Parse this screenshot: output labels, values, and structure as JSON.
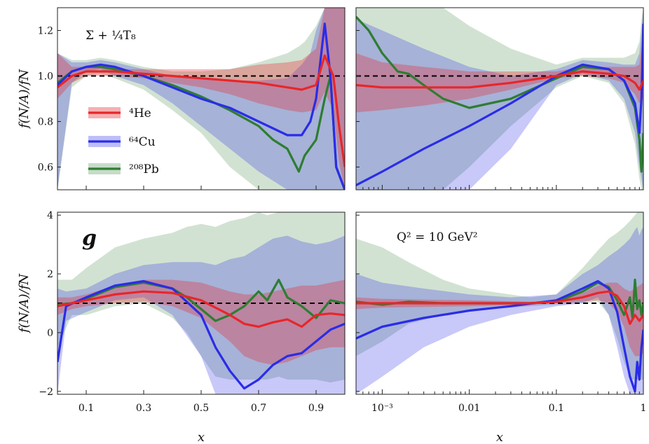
{
  "chart_data": [
    {
      "type": "line",
      "panel": "top-left",
      "label": "Σ + ¼T₈",
      "xscale": "linear",
      "xlim": [
        0.0,
        1.0
      ],
      "ylim": [
        0.5,
        1.3
      ],
      "yticks": [
        0.6,
        0.8,
        1.0,
        1.2
      ],
      "ytick_labels": [
        "0.6",
        "0.8",
        "1.0",
        "1.2"
      ],
      "xticks": [
        0.1,
        0.3,
        0.5,
        0.7,
        0.9
      ],
      "xtick_labels": [],
      "ylabel": "f(N/A)/fN",
      "reference_line": 1.0,
      "legend": {
        "placement": "center-left"
      },
      "series": [
        {
          "name": "⁴He",
          "color": "#e8262a",
          "x": [
            0.0,
            0.05,
            0.1,
            0.2,
            0.3,
            0.4,
            0.5,
            0.6,
            0.7,
            0.8,
            0.85,
            0.9,
            0.93,
            0.96,
            0.98,
            1.0
          ],
          "y": [
            0.95,
            1.0,
            1.02,
            1.02,
            1.01,
            1.0,
            0.99,
            0.98,
            0.97,
            0.95,
            0.94,
            0.96,
            1.09,
            1.0,
            0.78,
            0.6
          ],
          "band_lo": [
            0.9,
            0.97,
            1.0,
            1.0,
            0.99,
            0.97,
            0.95,
            0.92,
            0.88,
            0.85,
            0.84,
            0.85,
            0.93,
            0.85,
            0.62,
            0.5
          ],
          "band_hi": [
            1.1,
            1.04,
            1.04,
            1.03,
            1.03,
            1.03,
            1.03,
            1.03,
            1.05,
            1.06,
            1.07,
            1.12,
            1.3,
            1.3,
            1.3,
            1.3
          ]
        },
        {
          "name": "⁶⁴Cu",
          "color": "#2a2ce8",
          "x": [
            0.0,
            0.05,
            0.1,
            0.15,
            0.2,
            0.3,
            0.4,
            0.5,
            0.6,
            0.7,
            0.8,
            0.85,
            0.88,
            0.9,
            0.93,
            0.95,
            0.97,
            1.0
          ],
          "y": [
            0.96,
            1.02,
            1.04,
            1.05,
            1.04,
            1.0,
            0.95,
            0.9,
            0.86,
            0.8,
            0.74,
            0.74,
            0.8,
            0.9,
            1.23,
            1.0,
            0.6,
            0.5
          ],
          "band_lo": [
            0.5,
            0.97,
            1.02,
            1.03,
            1.0,
            0.96,
            0.88,
            0.78,
            0.68,
            0.58,
            0.5,
            0.5,
            0.5,
            0.5,
            0.5,
            0.5,
            0.5,
            0.5
          ],
          "band_hi": [
            1.1,
            1.06,
            1.06,
            1.07,
            1.06,
            1.03,
            1.0,
            0.99,
            0.98,
            0.98,
            0.99,
            1.05,
            1.1,
            1.2,
            1.3,
            1.3,
            1.3,
            1.3
          ]
        },
        {
          "name": "²⁰⁸Pb",
          "color": "#2e7d32",
          "x": [
            0.0,
            0.05,
            0.1,
            0.15,
            0.2,
            0.3,
            0.4,
            0.5,
            0.6,
            0.7,
            0.75,
            0.8,
            0.84,
            0.86,
            0.9,
            0.93,
            0.95,
            0.97,
            1.0
          ],
          "y": [
            0.97,
            1.02,
            1.04,
            1.04,
            1.03,
            1.0,
            0.96,
            0.91,
            0.85,
            0.78,
            0.72,
            0.68,
            0.58,
            0.65,
            0.72,
            0.9,
            1.0,
            0.6,
            0.5
          ],
          "band_lo": [
            0.5,
            0.95,
            1.0,
            1.01,
            0.99,
            0.94,
            0.85,
            0.75,
            0.6,
            0.5,
            0.5,
            0.5,
            0.5,
            0.5,
            0.5,
            0.5,
            0.5,
            0.5,
            0.5
          ],
          "band_hi": [
            1.1,
            1.07,
            1.07,
            1.08,
            1.07,
            1.04,
            1.02,
            1.02,
            1.03,
            1.06,
            1.08,
            1.1,
            1.13,
            1.15,
            1.22,
            1.3,
            1.3,
            1.3,
            1.3
          ]
        }
      ]
    },
    {
      "type": "line",
      "panel": "top-right",
      "xscale": "log",
      "xlim": [
        0.0005,
        1.0
      ],
      "ylim": [
        0.5,
        1.3
      ],
      "yticks": [
        0.6,
        0.8,
        1.0,
        1.2
      ],
      "xticks": [
        0.001,
        0.01,
        0.1,
        1
      ],
      "xtick_labels": [],
      "reference_line": 1.0,
      "series": [
        {
          "name": "⁴He",
          "color": "#e8262a",
          "x": [
            0.0005,
            0.001,
            0.003,
            0.01,
            0.03,
            0.1,
            0.2,
            0.4,
            0.6,
            0.8,
            0.9,
            1.0
          ],
          "y": [
            0.96,
            0.95,
            0.95,
            0.95,
            0.97,
            1.0,
            1.02,
            1.01,
            1.0,
            0.97,
            0.94,
            0.98
          ],
          "band_lo": [
            0.84,
            0.85,
            0.87,
            0.9,
            0.94,
            0.99,
            1.0,
            0.99,
            0.97,
            0.92,
            0.88,
            0.9
          ],
          "band_hi": [
            1.1,
            1.06,
            1.04,
            1.02,
            1.02,
            1.02,
            1.04,
            1.04,
            1.04,
            1.04,
            1.05,
            1.2
          ]
        },
        {
          "name": "⁶⁴Cu",
          "color": "#2a2ce8",
          "x": [
            0.0005,
            0.001,
            0.003,
            0.01,
            0.03,
            0.1,
            0.2,
            0.4,
            0.6,
            0.8,
            0.9,
            0.95,
            1.0
          ],
          "y": [
            0.52,
            0.58,
            0.68,
            0.78,
            0.88,
            1.0,
            1.05,
            1.03,
            0.98,
            0.88,
            0.75,
            0.9,
            1.23
          ],
          "band_lo": [
            0.5,
            0.5,
            0.5,
            0.5,
            0.68,
            0.96,
            1.01,
            0.98,
            0.9,
            0.75,
            0.6,
            0.55,
            0.5
          ],
          "band_hi": [
            1.25,
            1.2,
            1.12,
            1.04,
            1.0,
            1.03,
            1.07,
            1.06,
            1.05,
            1.05,
            1.1,
            1.2,
            1.3
          ]
        },
        {
          "name": "²⁰⁸Pb",
          "color": "#2e7d32",
          "x": [
            0.0005,
            0.0007,
            0.001,
            0.0015,
            0.002,
            0.003,
            0.005,
            0.01,
            0.03,
            0.1,
            0.2,
            0.4,
            0.6,
            0.8,
            0.9,
            0.95,
            1.0
          ],
          "y": [
            1.26,
            1.2,
            1.1,
            1.02,
            1.01,
            0.96,
            0.9,
            0.86,
            0.9,
            0.99,
            1.04,
            1.03,
            0.98,
            0.86,
            0.72,
            0.58,
            0.75
          ],
          "band_lo": [
            0.5,
            0.5,
            0.5,
            0.5,
            0.5,
            0.5,
            0.5,
            0.6,
            0.78,
            0.95,
            1.0,
            0.97,
            0.88,
            0.7,
            0.55,
            0.5,
            0.5
          ],
          "band_hi": [
            1.3,
            1.3,
            1.3,
            1.3,
            1.3,
            1.3,
            1.3,
            1.22,
            1.12,
            1.05,
            1.08,
            1.08,
            1.08,
            1.1,
            1.15,
            1.25,
            1.3
          ]
        }
      ]
    },
    {
      "type": "line",
      "panel": "bottom-left",
      "label": "g",
      "xscale": "linear",
      "xlim": [
        0.0,
        1.0
      ],
      "ylim": [
        -2.1,
        4.1
      ],
      "yticks": [
        -2,
        0,
        2,
        4
      ],
      "ytick_labels": [
        "−2",
        "0",
        "2",
        "4"
      ],
      "xticks": [
        0.1,
        0.3,
        0.5,
        0.7,
        0.9
      ],
      "xtick_labels": [
        "0.1",
        "0.3",
        "0.5",
        "0.7",
        "0.9"
      ],
      "xlabel": "x",
      "ylabel": "f(N/A)/fN",
      "reference_line": 1.0,
      "series": [
        {
          "name": "⁴He",
          "color": "#e8262a",
          "x": [
            0.0,
            0.05,
            0.1,
            0.2,
            0.3,
            0.4,
            0.5,
            0.6,
            0.65,
            0.7,
            0.75,
            0.8,
            0.85,
            0.9,
            0.95,
            1.0
          ],
          "y": [
            0.9,
            1.0,
            1.1,
            1.3,
            1.4,
            1.35,
            1.1,
            0.6,
            0.3,
            0.2,
            0.35,
            0.45,
            0.2,
            0.6,
            0.65,
            0.6
          ],
          "band_lo": [
            0.6,
            0.8,
            0.9,
            1.0,
            1.05,
            0.9,
            0.5,
            -0.3,
            -0.8,
            -1.0,
            -1.1,
            -1.0,
            -0.8,
            -0.6,
            -0.5,
            -0.5
          ],
          "band_hi": [
            1.2,
            1.2,
            1.3,
            1.6,
            1.8,
            1.8,
            1.7,
            1.4,
            1.3,
            1.3,
            1.4,
            1.5,
            1.6,
            1.6,
            1.7,
            1.8
          ]
        },
        {
          "name": "⁶⁴Cu",
          "color": "#2a2ce8",
          "x": [
            0.0,
            0.03,
            0.1,
            0.2,
            0.3,
            0.4,
            0.5,
            0.55,
            0.6,
            0.65,
            0.7,
            0.75,
            0.8,
            0.85,
            0.9,
            0.95,
            1.0
          ],
          "y": [
            -1.0,
            0.9,
            1.2,
            1.6,
            1.75,
            1.5,
            0.6,
            -0.5,
            -1.3,
            -1.9,
            -1.6,
            -1.1,
            -0.8,
            -0.7,
            -0.3,
            0.1,
            0.3
          ],
          "band_lo": [
            -2.1,
            0.4,
            0.7,
            1.1,
            1.2,
            0.6,
            -0.8,
            -2.1,
            -2.1,
            -2.1,
            -2.1,
            -2.1,
            -2.1,
            -2.1,
            -2.1,
            -2.1,
            -2.1
          ],
          "band_hi": [
            1.5,
            1.4,
            1.5,
            2.0,
            2.3,
            2.4,
            2.4,
            2.3,
            2.5,
            2.6,
            2.9,
            3.2,
            3.3,
            3.1,
            3.0,
            3.1,
            3.3
          ]
        },
        {
          "name": "²⁰⁸Pb",
          "color": "#2e7d32",
          "x": [
            0.0,
            0.05,
            0.1,
            0.2,
            0.3,
            0.4,
            0.45,
            0.5,
            0.55,
            0.6,
            0.65,
            0.7,
            0.73,
            0.77,
            0.8,
            0.85,
            0.9,
            0.95,
            1.0
          ],
          "y": [
            0.95,
            1.0,
            1.15,
            1.55,
            1.7,
            1.5,
            1.2,
            0.8,
            0.4,
            0.6,
            0.9,
            1.4,
            1.1,
            1.8,
            1.2,
            0.9,
            0.5,
            1.1,
            1.0
          ],
          "band_lo": [
            -0.5,
            0.6,
            0.6,
            0.9,
            1.0,
            0.5,
            0.0,
            -0.8,
            -1.5,
            -1.6,
            -1.6,
            -1.6,
            -1.6,
            -1.5,
            -1.6,
            -1.6,
            -1.6,
            -1.7,
            -1.6
          ],
          "band_hi": [
            1.8,
            1.8,
            2.2,
            2.9,
            3.2,
            3.4,
            3.6,
            3.7,
            3.6,
            3.8,
            3.9,
            4.1,
            4.0,
            4.1,
            4.1,
            4.1,
            4.1,
            4.1,
            4.1
          ]
        }
      ]
    },
    {
      "type": "line",
      "panel": "bottom-right",
      "label": "Q² = 10 GeV²",
      "xscale": "log",
      "xlim": [
        0.0005,
        1.0
      ],
      "ylim": [
        -2.1,
        4.1
      ],
      "yticks": [
        -2,
        0,
        2,
        4
      ],
      "xticks": [
        0.001,
        0.01,
        0.1,
        1
      ],
      "xtick_labels": [
        "10⁻³",
        "0.01",
        "0.1",
        "1"
      ],
      "xlabel": "x",
      "reference_line": 1.0,
      "series": [
        {
          "name": "⁴He",
          "color": "#e8262a",
          "x": [
            0.0005,
            0.001,
            0.01,
            0.05,
            0.1,
            0.2,
            0.3,
            0.4,
            0.5,
            0.6,
            0.7,
            0.8,
            0.9,
            1.0
          ],
          "y": [
            1.0,
            1.0,
            1.0,
            1.0,
            1.05,
            1.2,
            1.35,
            1.4,
            1.25,
            0.9,
            0.3,
            0.6,
            0.4,
            0.6
          ],
          "band_lo": [
            0.8,
            0.85,
            0.9,
            0.95,
            1.0,
            1.05,
            1.1,
            1.0,
            0.7,
            0.2,
            -0.5,
            -0.8,
            -0.8,
            -0.7
          ],
          "band_hi": [
            1.2,
            1.15,
            1.1,
            1.05,
            1.1,
            1.35,
            1.6,
            1.7,
            1.7,
            1.5,
            1.4,
            1.5,
            1.6,
            1.7
          ]
        },
        {
          "name": "⁶⁴Cu",
          "color": "#2a2ce8",
          "x": [
            0.0005,
            0.001,
            0.003,
            0.01,
            0.03,
            0.1,
            0.2,
            0.3,
            0.4,
            0.5,
            0.6,
            0.7,
            0.8,
            0.85,
            0.9,
            0.95,
            1.0
          ],
          "y": [
            -0.2,
            0.2,
            0.5,
            0.75,
            0.9,
            1.1,
            1.5,
            1.75,
            1.5,
            0.7,
            -0.5,
            -1.5,
            -2.0,
            -1.0,
            -1.6,
            -0.5,
            0.1
          ],
          "band_lo": [
            -2.1,
            -1.5,
            -0.5,
            0.2,
            0.6,
            0.9,
            1.0,
            1.2,
            0.6,
            -0.5,
            -1.5,
            -2.1,
            -2.1,
            -2.1,
            -2.1,
            -2.1,
            -2.1
          ],
          "band_hi": [
            2.0,
            1.7,
            1.5,
            1.3,
            1.2,
            1.3,
            2.0,
            2.3,
            2.6,
            2.8,
            3.0,
            3.2,
            3.5,
            3.6,
            3.3,
            3.5,
            3.6
          ]
        },
        {
          "name": "²⁰⁸Pb",
          "color": "#2e7d32",
          "x": [
            0.0005,
            0.001,
            0.002,
            0.005,
            0.01,
            0.05,
            0.1,
            0.2,
            0.3,
            0.4,
            0.5,
            0.6,
            0.7,
            0.75,
            0.8,
            0.85,
            0.9,
            0.95,
            1.0
          ],
          "y": [
            1.05,
            0.95,
            1.05,
            1.0,
            1.0,
            1.0,
            1.05,
            1.4,
            1.7,
            1.55,
            1.1,
            0.6,
            1.2,
            0.5,
            1.8,
            0.8,
            1.1,
            0.6,
            1.0
          ],
          "band_lo": [
            -0.8,
            -0.3,
            0.3,
            0.6,
            0.75,
            0.9,
            0.95,
            1.0,
            1.05,
            0.6,
            -0.2,
            -1.0,
            -1.5,
            -1.6,
            -1.6,
            -1.6,
            -1.6,
            -1.6,
            -1.6
          ],
          "band_hi": [
            3.2,
            2.9,
            2.4,
            1.8,
            1.5,
            1.2,
            1.3,
            2.2,
            2.8,
            3.2,
            3.4,
            3.6,
            3.8,
            3.9,
            4.0,
            4.1,
            4.1,
            4.1,
            4.1
          ]
        }
      ]
    }
  ],
  "legend_entries": [
    "⁴He",
    "⁶⁴Cu",
    "²⁰⁸Pb"
  ],
  "colors": {
    "He": "#e8262a",
    "Cu": "#2a2ce8",
    "Pb": "#2e7d32",
    "reference": "#000000"
  }
}
